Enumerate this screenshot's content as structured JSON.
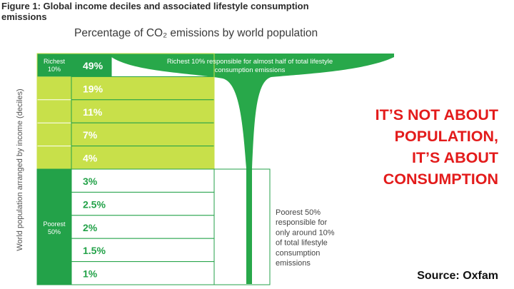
{
  "figure_title": "Figure 1: Global income deciles and associated lifestyle consumption emissions",
  "colors": {
    "dark_green": "#23a249",
    "light_green": "#c8e04a",
    "funnel_green": "#28a84a",
    "headline_red": "#e31b1b"
  },
  "chart_data": {
    "type": "bar",
    "title": "Percentage of CO₂ emissions by world population",
    "ylabel": "World population arranged by income (deciles)",
    "categories": [
      "Richest 10%",
      "",
      "",
      "",
      "",
      "",
      "",
      "",
      "",
      "Poorest 50%"
    ],
    "values": [
      49,
      19,
      11,
      7,
      4,
      3,
      2.5,
      2,
      1.5,
      1
    ],
    "value_labels": [
      "49%",
      "19%",
      "11%",
      "7%",
      "4%",
      "3%",
      "2.5%",
      "2%",
      "1.5%",
      "1%"
    ],
    "group_labels": {
      "richest": [
        "Richest",
        "10%"
      ],
      "poorest": [
        "Poorest",
        "50%"
      ]
    },
    "annotations": {
      "richest_note": [
        "Richest 10% responsible for almost half of total lifestyle",
        "consumption emissions"
      ],
      "poorest_note": [
        "Poorest 50%",
        "responsible for",
        "only around 10%",
        "of total lifestyle",
        "consumption",
        "emissions"
      ]
    }
  },
  "headline": [
    "IT’S NOT ABOUT",
    "POPULATION,",
    "IT’S ABOUT",
    "CONSUMPTION"
  ],
  "source": "Source: Oxfam"
}
